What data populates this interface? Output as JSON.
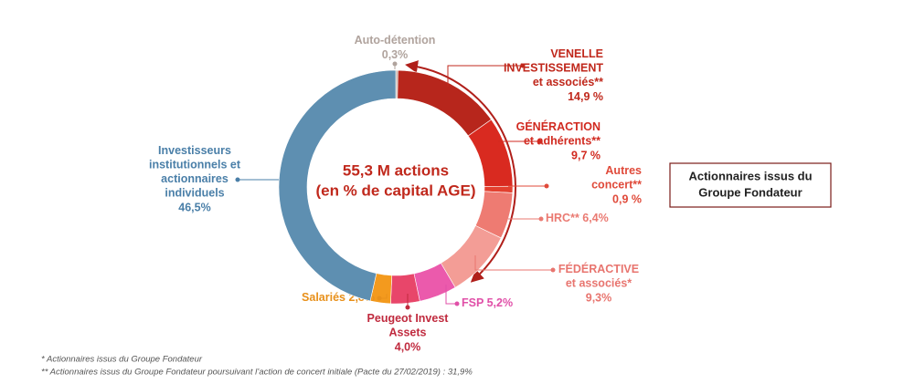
{
  "chart_data": {
    "type": "donut",
    "center_title": [
      "55,3 M actions",
      "(en % de capital AGE)"
    ],
    "categories": [
      [
        "Auto-détention"
      ],
      [
        "VENELLE",
        "INVESTISSEMENT",
        "et associés**"
      ],
      [
        "GÉNÉRACTION",
        "et adhérents**"
      ],
      [
        "Autres",
        "concert**"
      ],
      [
        "HRC**"
      ],
      [
        "FÉDÉRACTIVE",
        "et associés*"
      ],
      [
        "FSP"
      ],
      [
        "Peugeot Invest",
        "Assets"
      ],
      [
        "Salariés"
      ],
      [
        "Investisseurs",
        "institutionnels et",
        "actionnaires",
        "individuels"
      ]
    ],
    "values": [
      0.3,
      14.9,
      9.7,
      0.9,
      6.4,
      9.3,
      5.2,
      4.0,
      2.8,
      46.5
    ],
    "value_labels": [
      "0,3%",
      "14,9 %",
      "9,7 %",
      "0,9 %",
      "6,4%",
      "9,3%",
      "5,2%",
      "4,0%",
      "2,8%",
      "46,5%"
    ],
    "colors": [
      "#c9b9b1",
      "#b7261c",
      "#d92a20",
      "#e3402f",
      "#ee7b72",
      "#f39d96",
      "#eb5aac",
      "#e8466a",
      "#f39a1e",
      "#5e8fb1"
    ],
    "label_colors": [
      "#b0a39d",
      "#c0281c",
      "#d12a20",
      "#e04a3a",
      "#ea7a72",
      "#e8756f",
      "#e050a8",
      "#c02a3e",
      "#e8901a",
      "#4a7fa8"
    ],
    "box_label": [
      "Actionnaires issus du",
      "Groupe Fondateur"
    ],
    "footnotes": [
      "*  Actionnaires issus du Groupe Fondateur",
      "** Actionnaires issus du Groupe Fondateur poursuivant l’action de concert initiale (Pacte du 27/02/2019)  : 31,9%"
    ]
  }
}
